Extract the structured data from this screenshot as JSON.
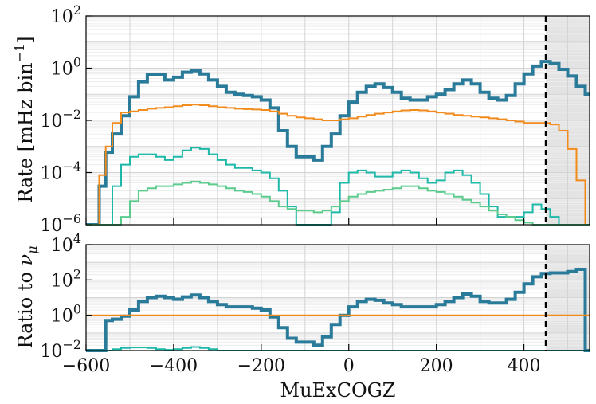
{
  "chart_data": [
    {
      "panel": "top",
      "type": "line",
      "ylabel_parts": [
        "Rate [mHz bin",
        "−1",
        "]"
      ],
      "yscale": "log",
      "ylim": [
        1e-06,
        100
      ],
      "xlim": [
        -600,
        550
      ],
      "y_ticks": [
        {
          "base": "10",
          "exp": "2",
          "value": 100
        },
        {
          "base": "10",
          "exp": "0",
          "value": 1
        },
        {
          "base": "10",
          "exp": "−2",
          "value": 0.01
        },
        {
          "base": "10",
          "exp": "−4",
          "value": 0.0001
        },
        {
          "base": "10",
          "exp": "−6",
          "value": 1e-06
        }
      ],
      "grid": true,
      "cut_line_x": 450,
      "shaded_region": [
        450,
        550
      ],
      "series": [
        {
          "color": "#2a7a9a",
          "width": 4,
          "x": [
            -600,
            -570,
            -555,
            -540,
            -520,
            -500,
            -480,
            -460,
            -440,
            -420,
            -400,
            -380,
            -360,
            -340,
            -320,
            -300,
            -280,
            -260,
            -240,
            -220,
            -200,
            -180,
            -160,
            -140,
            -120,
            -100,
            -80,
            -60,
            -40,
            -20,
            0,
            20,
            40,
            60,
            80,
            100,
            120,
            140,
            160,
            180,
            200,
            220,
            240,
            260,
            280,
            300,
            320,
            340,
            360,
            380,
            400,
            420,
            440,
            460,
            480,
            500,
            520,
            540
          ],
          "y": [
            1e-06,
            3e-05,
            0.0006,
            0.003,
            0.015,
            0.08,
            0.3,
            0.55,
            0.55,
            0.35,
            0.45,
            0.7,
            0.8,
            0.6,
            0.35,
            0.2,
            0.12,
            0.1,
            0.09,
            0.08,
            0.06,
            0.03,
            0.004,
            0.001,
            0.0004,
            0.0004,
            0.0003,
            0.001,
            0.003,
            0.015,
            0.05,
            0.12,
            0.2,
            0.25,
            0.18,
            0.12,
            0.07,
            0.06,
            0.06,
            0.08,
            0.1,
            0.15,
            0.25,
            0.35,
            0.25,
            0.12,
            0.07,
            0.06,
            0.09,
            0.25,
            0.6,
            1.2,
            1.8,
            1.5,
            0.9,
            0.5,
            0.2,
            0.1
          ]
        },
        {
          "color": "#f28a1c",
          "width": 2,
          "x": [
            -600,
            -570,
            -555,
            -540,
            -520,
            -500,
            -480,
            -460,
            -440,
            -420,
            -400,
            -380,
            -360,
            -340,
            -320,
            -300,
            -280,
            -260,
            -240,
            -220,
            -200,
            -180,
            -160,
            -140,
            -120,
            -100,
            -80,
            -60,
            -40,
            -20,
            0,
            20,
            40,
            60,
            80,
            100,
            120,
            140,
            160,
            180,
            200,
            220,
            240,
            260,
            280,
            300,
            320,
            340,
            360,
            380,
            400,
            420,
            440,
            460,
            480,
            500,
            520,
            540
          ],
          "y": [
            1e-06,
            8e-05,
            0.001,
            0.008,
            0.02,
            0.022,
            0.025,
            0.028,
            0.03,
            0.032,
            0.035,
            0.038,
            0.04,
            0.038,
            0.035,
            0.032,
            0.03,
            0.028,
            0.027,
            0.026,
            0.025,
            0.022,
            0.018,
            0.015,
            0.013,
            0.012,
            0.011,
            0.01,
            0.01,
            0.011,
            0.012,
            0.014,
            0.016,
            0.018,
            0.02,
            0.022,
            0.024,
            0.025,
            0.024,
            0.022,
            0.02,
            0.018,
            0.016,
            0.015,
            0.014,
            0.013,
            0.012,
            0.011,
            0.01,
            0.009,
            0.008,
            0.008,
            0.008,
            0.007,
            0.004,
            0.0008,
            5e-05,
            1e-06
          ]
        },
        {
          "color": "#1db8a8",
          "width": 2,
          "x": [
            -600,
            -570,
            -555,
            -540,
            -520,
            -500,
            -480,
            -460,
            -440,
            -420,
            -400,
            -380,
            -360,
            -340,
            -320,
            -300,
            -280,
            -260,
            -240,
            -220,
            -200,
            -180,
            -160,
            -140,
            -120,
            -100,
            -80,
            -60,
            -40,
            -20,
            0,
            20,
            40,
            60,
            80,
            100,
            120,
            140,
            160,
            180,
            200,
            220,
            240,
            260,
            280,
            300,
            320,
            340,
            360,
            380,
            400,
            420,
            440,
            460,
            480,
            500,
            520,
            540
          ],
          "y": [
            1e-06,
            1e-06,
            1e-06,
            3e-05,
            0.0002,
            0.0004,
            0.0005,
            0.0005,
            0.0004,
            0.0003,
            0.0004,
            0.0007,
            0.0009,
            0.0008,
            0.0005,
            0.0003,
            0.0002,
            0.00015,
            0.00015,
            0.00012,
            0.0001,
            6e-05,
            2e-05,
            5e-06,
            1e-06,
            1e-06,
            1e-06,
            1e-06,
            3e-06,
            4e-05,
            0.0001,
            0.00012,
            0.0001,
            7e-05,
            7e-05,
            0.0001,
            0.00012,
            0.0001,
            6e-05,
            4e-05,
            5e-05,
            0.0001,
            0.00012,
            8e-05,
            4e-05,
            1.5e-05,
            5e-06,
            2e-06,
            2e-06,
            2e-06,
            3e-06,
            6e-06,
            4e-06,
            2e-06,
            1e-06,
            1e-06,
            1e-06,
            1e-06
          ]
        },
        {
          "color": "#5acb8c",
          "width": 2,
          "x": [
            -600,
            -570,
            -555,
            -540,
            -520,
            -500,
            -480,
            -460,
            -440,
            -420,
            -400,
            -380,
            -360,
            -340,
            -320,
            -300,
            -280,
            -260,
            -240,
            -220,
            -200,
            -180,
            -160,
            -140,
            -120,
            -100,
            -80,
            -60,
            -40,
            -20,
            0,
            20,
            40,
            60,
            80,
            100,
            120,
            140,
            160,
            180,
            200,
            220,
            240,
            260,
            280,
            300,
            320,
            340,
            360,
            380,
            400,
            420,
            440,
            460,
            480,
            500,
            520,
            540
          ],
          "y": [
            1e-06,
            1e-06,
            1e-06,
            1e-06,
            2e-06,
            8e-06,
            2e-05,
            2.5e-05,
            3e-05,
            3e-05,
            3.5e-05,
            4e-05,
            4.5e-05,
            4e-05,
            3.5e-05,
            3e-05,
            2.5e-05,
            2e-05,
            1.8e-05,
            1.5e-05,
            1.2e-05,
            8e-06,
            5e-06,
            4e-06,
            3.5e-06,
            3.5e-06,
            3e-06,
            3.5e-06,
            5e-06,
            8e-06,
            1.2e-05,
            1.5e-05,
            1.8e-05,
            2e-05,
            2.2e-05,
            2.5e-05,
            3e-05,
            3e-05,
            2.5e-05,
            2e-05,
            1.8e-05,
            1.5e-05,
            1.2e-05,
            9e-06,
            7e-06,
            5e-06,
            3.5e-06,
            2.5e-06,
            2e-06,
            1.5e-06,
            1.2e-06,
            1e-06,
            1e-06,
            1e-06,
            1e-06,
            1e-06,
            1e-06,
            1e-06
          ]
        }
      ]
    },
    {
      "panel": "bottom",
      "type": "line",
      "ylabel": "Ratio to ",
      "ylabel_symbol": "ν",
      "ylabel_sub": "μ",
      "xlabel": "MuExCOGZ",
      "yscale": "log",
      "ylim": [
        0.01,
        10000
      ],
      "xlim": [
        -600,
        550
      ],
      "x_ticks": [
        "−600",
        "−400",
        "−200",
        "0",
        "200",
        "400"
      ],
      "x_tick_values": [
        -600,
        -400,
        -200,
        0,
        200,
        400
      ],
      "y_ticks": [
        {
          "base": "10",
          "exp": "4",
          "value": 10000
        },
        {
          "base": "10",
          "exp": "2",
          "value": 100
        },
        {
          "base": "10",
          "exp": "0",
          "value": 1
        },
        {
          "base": "10",
          "exp": "−2",
          "value": 0.01
        }
      ],
      "grid": true,
      "cut_line_x": 450,
      "shaded_region": [
        450,
        550
      ],
      "series": [
        {
          "color": "#2a7a9a",
          "width": 4,
          "x": [
            -600,
            -570,
            -555,
            -540,
            -520,
            -500,
            -480,
            -460,
            -440,
            -420,
            -400,
            -380,
            -360,
            -340,
            -320,
            -300,
            -280,
            -260,
            -240,
            -220,
            -200,
            -180,
            -160,
            -140,
            -120,
            -100,
            -80,
            -60,
            -40,
            -20,
            0,
            20,
            40,
            60,
            80,
            100,
            120,
            140,
            160,
            180,
            200,
            220,
            240,
            260,
            280,
            300,
            320,
            340,
            360,
            380,
            400,
            420,
            440,
            460,
            480,
            500,
            520,
            540
          ],
          "y": [
            0.01,
            0.01,
            0.5,
            0.6,
            0.9,
            2,
            6,
            10,
            12,
            10,
            8,
            11,
            14,
            10,
            6,
            4,
            3,
            3,
            3,
            2.5,
            2,
            0.8,
            0.2,
            0.05,
            0.03,
            0.03,
            0.02,
            0.06,
            0.3,
            1,
            3,
            6,
            8,
            7,
            5,
            4,
            3,
            3,
            3,
            3,
            4,
            6,
            10,
            16,
            12,
            6,
            5,
            5,
            8,
            20,
            60,
            150,
            230,
            250,
            250,
            300,
            400,
            0.01
          ]
        },
        {
          "color": "#f28a1c",
          "width": 2,
          "x": [
            -600,
            -560,
            -540,
            450,
            480,
            500,
            520,
            540
          ],
          "y": [
            1,
            1,
            1,
            1,
            1,
            1,
            1,
            1
          ]
        },
        {
          "color": "#1db8a8",
          "width": 2,
          "x": [
            -600,
            -560,
            -540,
            -520,
            -500,
            -480,
            -460,
            -440,
            -420,
            -400,
            -380,
            -360,
            -340,
            -320,
            -300
          ],
          "y": [
            0.001,
            0.01,
            0.012,
            0.014,
            0.015,
            0.015,
            0.014,
            0.012,
            0.011,
            0.012,
            0.014,
            0.016,
            0.014,
            0.012,
            0.008
          ]
        }
      ]
    }
  ]
}
